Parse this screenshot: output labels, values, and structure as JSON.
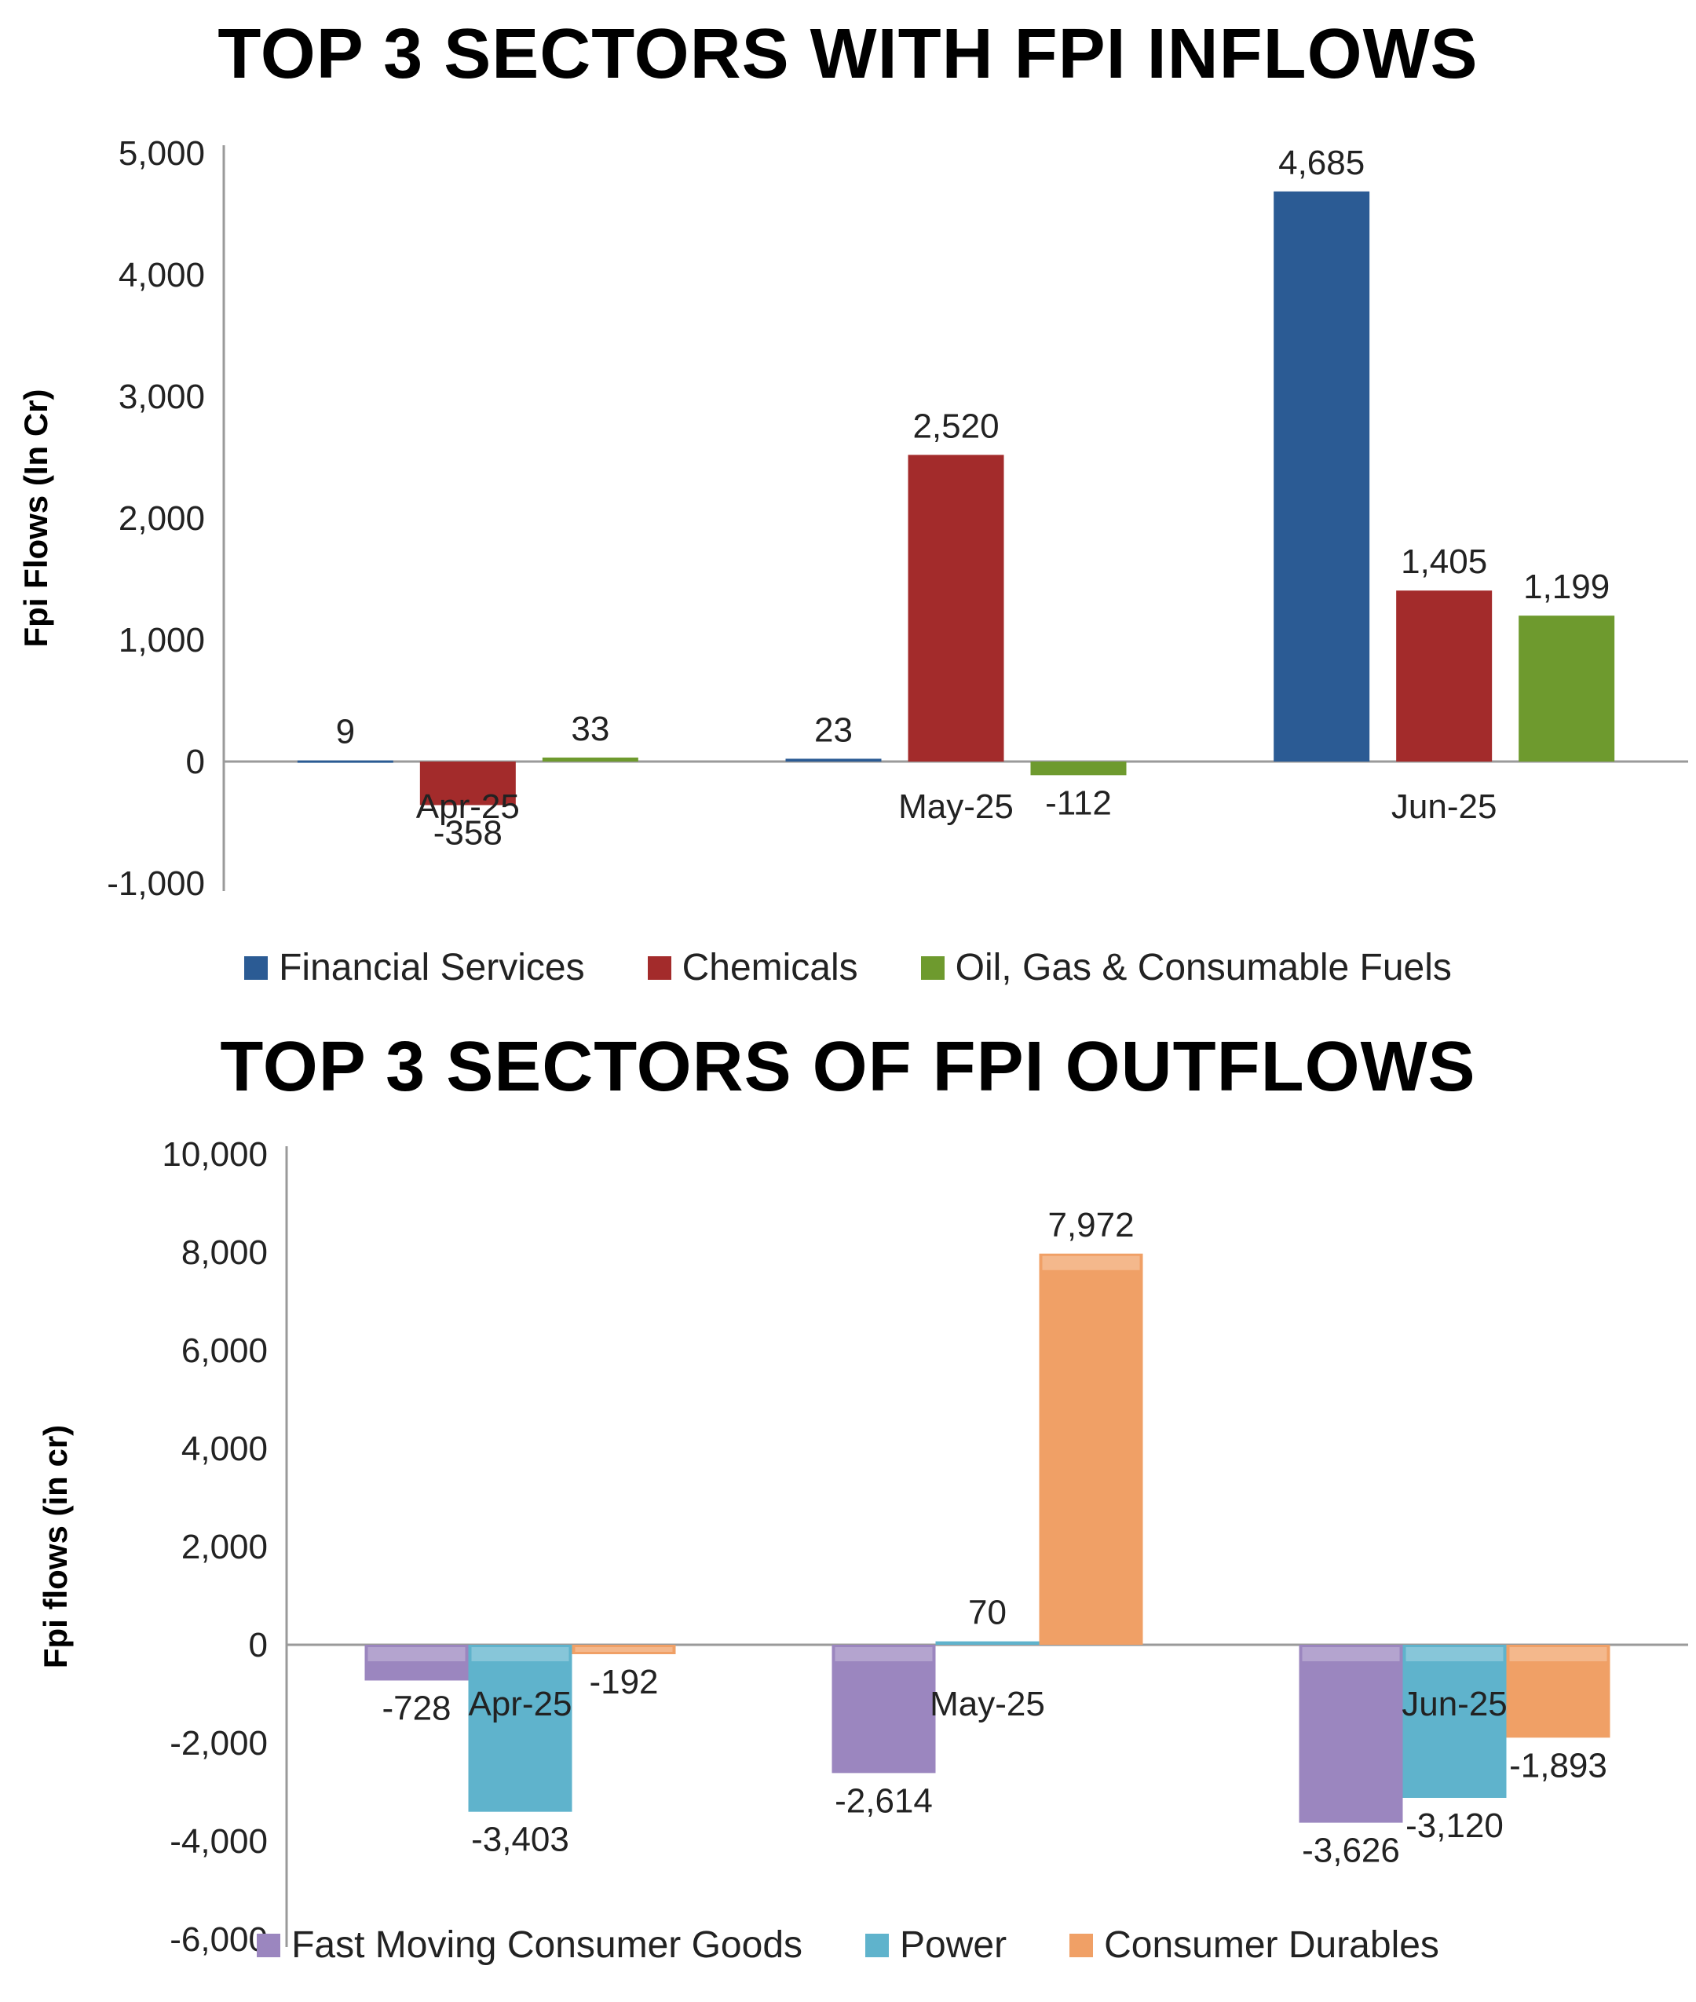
{
  "chart_data": [
    {
      "type": "bar",
      "title": "TOP 3 SECTORS WITH FPI INFLOWS",
      "ylabel": "Fpi Flows (In Cr)",
      "xlabel": "",
      "categories": [
        "Apr-25",
        "May-25",
        "Jun-25"
      ],
      "series": [
        {
          "name": "Financial Services",
          "color": "#2b5b94",
          "values": [
            9,
            23,
            4685
          ],
          "labels": [
            "9",
            "23",
            "4,685"
          ]
        },
        {
          "name": "Chemicals",
          "color": "#a32b2b",
          "values": [
            -358,
            2520,
            1405
          ],
          "labels": [
            "-358",
            "2,520",
            "1,405"
          ]
        },
        {
          "name": "Oil, Gas & Consumable Fuels",
          "color": "#6e9a2e",
          "values": [
            33,
            -112,
            1199
          ],
          "labels": [
            "33",
            "-112",
            "1,199"
          ]
        }
      ],
      "ylim": [
        -1000,
        5000
      ],
      "yticks": [
        5000,
        4000,
        3000,
        2000,
        1000,
        0,
        -1000
      ],
      "ytick_labels": [
        "5,000",
        "4,000",
        "3,000",
        "2,000",
        "1,000",
        "0",
        "-1,000"
      ],
      "grid": false,
      "legend": "bottom"
    },
    {
      "type": "bar",
      "title": "TOP 3 SECTORS OF FPI OUTFLOWS",
      "ylabel": "Fpi flows (in cr)",
      "xlabel": "",
      "categories": [
        "Apr-25",
        "May-25",
        "Jun-25"
      ],
      "series": [
        {
          "name": "Fast Moving Consumer Goods",
          "color": "#9b86bf",
          "values": [
            -728,
            -2614,
            -3626
          ],
          "labels": [
            "-728",
            "-2,614",
            "-3,626"
          ]
        },
        {
          "name": "Power",
          "color": "#5fb3cc",
          "values": [
            -3403,
            70,
            -3120
          ],
          "labels": [
            "-3,403",
            "70",
            "-3,120"
          ]
        },
        {
          "name": "Consumer Durables",
          "color": "#f0a066",
          "values": [
            -192,
            7972,
            -1893
          ],
          "labels": [
            "-192",
            "7,972",
            "-1,893"
          ]
        }
      ],
      "ylim": [
        -6000,
        10000
      ],
      "yticks": [
        10000,
        8000,
        6000,
        4000,
        2000,
        0,
        -2000,
        -4000,
        -6000
      ],
      "ytick_labels": [
        "10,000",
        "8,000",
        "6,000",
        "4,000",
        "2,000",
        "0",
        "-2,000",
        "-4,000",
        "-6,000"
      ],
      "grid": false,
      "legend": "bottom"
    }
  ]
}
